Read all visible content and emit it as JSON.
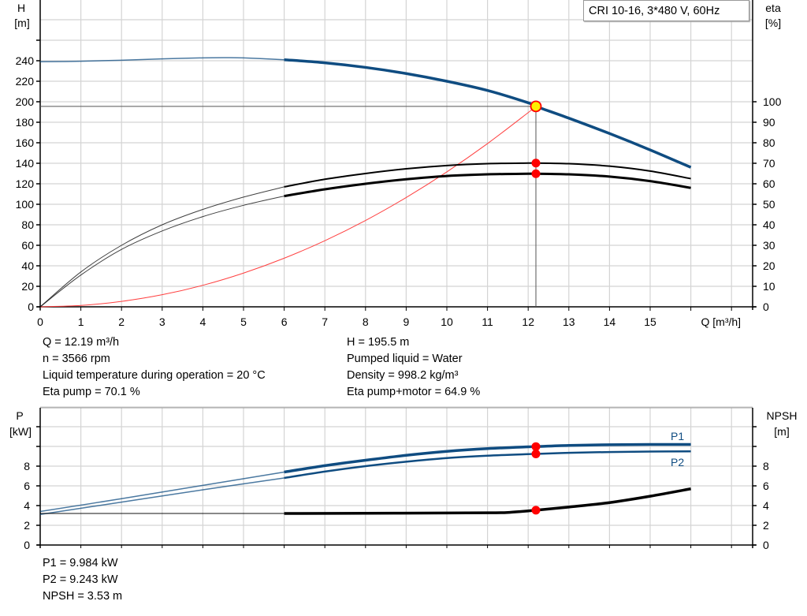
{
  "chart_data": [
    {
      "type": "line",
      "title": "CRI 10-16, 3*480 V, 60Hz",
      "xlabel": "Q [m³/h]",
      "ylabel_left": [
        "H",
        "[m]"
      ],
      "ylabel_right": [
        "eta",
        "[%]"
      ],
      "xlim": [
        0,
        17.5
      ],
      "ylim_left": [
        0,
        300
      ],
      "ylim_right": [
        0,
        115
      ],
      "xticks": [
        0,
        1,
        2,
        3,
        4,
        5,
        6,
        7,
        8,
        9,
        10,
        11,
        12,
        13,
        14,
        15
      ],
      "yticks_left": [
        0,
        20,
        40,
        60,
        80,
        100,
        120,
        140,
        160,
        180,
        200,
        220,
        240
      ],
      "yticks_right": [
        0,
        10,
        20,
        30,
        40,
        50,
        60,
        70,
        80,
        90,
        100
      ],
      "grid": true,
      "series": [
        {
          "key": "H",
          "axis": "left",
          "color": "#0f4c81",
          "x": [
            0,
            1,
            2,
            3,
            4,
            4.5,
            5,
            6,
            7,
            8,
            9,
            10,
            11,
            12,
            12.19,
            13,
            14,
            15,
            16
          ],
          "y": [
            239,
            239.5,
            240.5,
            241.8,
            242.8,
            243,
            242.8,
            241,
            238,
            233.5,
            227.5,
            220,
            211,
            199,
            195.5,
            184,
            169,
            153,
            136
          ]
        },
        {
          "key": "system",
          "axis": "left",
          "color": "#ff4040",
          "x": [
            0,
            1,
            2,
            3,
            4,
            5,
            6,
            7,
            8,
            9,
            10,
            11,
            12,
            12.19
          ],
          "y": [
            0,
            1.3,
            5.3,
            11.8,
            21,
            32.9,
            47.4,
            64.5,
            84.2,
            106.6,
            131.6,
            159.2,
            189.4,
            195.5
          ]
        },
        {
          "key": "eta_pump",
          "axis": "right",
          "color": "#000000",
          "x": [
            0,
            1,
            2,
            3,
            4,
            5,
            6,
            7,
            8,
            9,
            10,
            11,
            12,
            12.19,
            13,
            14,
            15,
            16
          ],
          "y": [
            0,
            17,
            30,
            40,
            47.5,
            53.5,
            58.5,
            62.2,
            65,
            67.3,
            68.9,
            69.8,
            70.1,
            70.1,
            69.8,
            68.6,
            66.2,
            62.5
          ]
        },
        {
          "key": "eta_pump_motor",
          "axis": "right",
          "color": "#000000",
          "x": [
            0,
            1,
            2,
            3,
            4,
            5,
            6,
            7,
            8,
            9,
            10,
            11,
            12,
            12.19,
            13,
            14,
            15,
            16
          ],
          "y": [
            0,
            15.5,
            28,
            37,
            44,
            49.5,
            54,
            57.3,
            60,
            62.2,
            63.8,
            64.6,
            64.9,
            64.9,
            64.6,
            63.5,
            61.3,
            58
          ]
        }
      ],
      "duty_point": {
        "Q": 12.19,
        "H": 195.5,
        "eta_pump": 70.1,
        "eta_pump_motor": 64.9
      }
    },
    {
      "type": "line",
      "ylabel_left": [
        "P",
        "[kW]"
      ],
      "ylabel_right": [
        "NPSH",
        "[m]"
      ],
      "xlim": [
        0,
        17.5
      ],
      "ylim": [
        0,
        14
      ],
      "yticks_left": [
        0,
        2,
        4,
        6,
        8
      ],
      "yticks_right": [
        0,
        2,
        4,
        6,
        8
      ],
      "grid": true,
      "series": [
        {
          "name": "P1",
          "color": "#0f4c81",
          "x": [
            0,
            2,
            4,
            6,
            7,
            8,
            9,
            10,
            11,
            12,
            12.19,
            13,
            14,
            15,
            16
          ],
          "y": [
            3.4,
            4.7,
            6.05,
            7.4,
            8.05,
            8.6,
            9.1,
            9.5,
            9.78,
            9.96,
            9.984,
            10.1,
            10.17,
            10.2,
            10.2
          ]
        },
        {
          "name": "P2",
          "color": "#0f4c81",
          "x": [
            0,
            2,
            4,
            6,
            7,
            8,
            9,
            10,
            11,
            12,
            12.19,
            13,
            14,
            15,
            16
          ],
          "y": [
            3.1,
            4.35,
            5.6,
            6.8,
            7.45,
            8.0,
            8.45,
            8.82,
            9.06,
            9.22,
            9.243,
            9.35,
            9.43,
            9.48,
            9.5
          ]
        },
        {
          "key": "NPSH",
          "color": "#000000",
          "x": [
            0,
            6,
            8,
            10,
            11,
            11.5,
            12.19,
            13,
            14,
            15,
            16
          ],
          "y": [
            3.2,
            3.2,
            3.22,
            3.25,
            3.27,
            3.3,
            3.53,
            3.85,
            4.3,
            4.95,
            5.7
          ]
        }
      ],
      "duty_point": {
        "Q": 12.19,
        "P1": 9.984,
        "P2": 9.243,
        "NPSH": 3.53
      }
    }
  ],
  "info": {
    "left": [
      "Q = 12.19 m³/h",
      "n = 3566 rpm",
      "Liquid temperature during operation = 20 °C",
      "Eta pump = 70.1 %"
    ],
    "right": [
      "H = 195.5 m",
      "Pumped liquid = Water",
      "Density = 998.2 kg/m³",
      "Eta pump+motor = 64.9 %"
    ],
    "bottom": [
      "P1 = 9.984 kW",
      "P2 = 9.243 kW",
      "NPSH = 3.53 m"
    ]
  }
}
